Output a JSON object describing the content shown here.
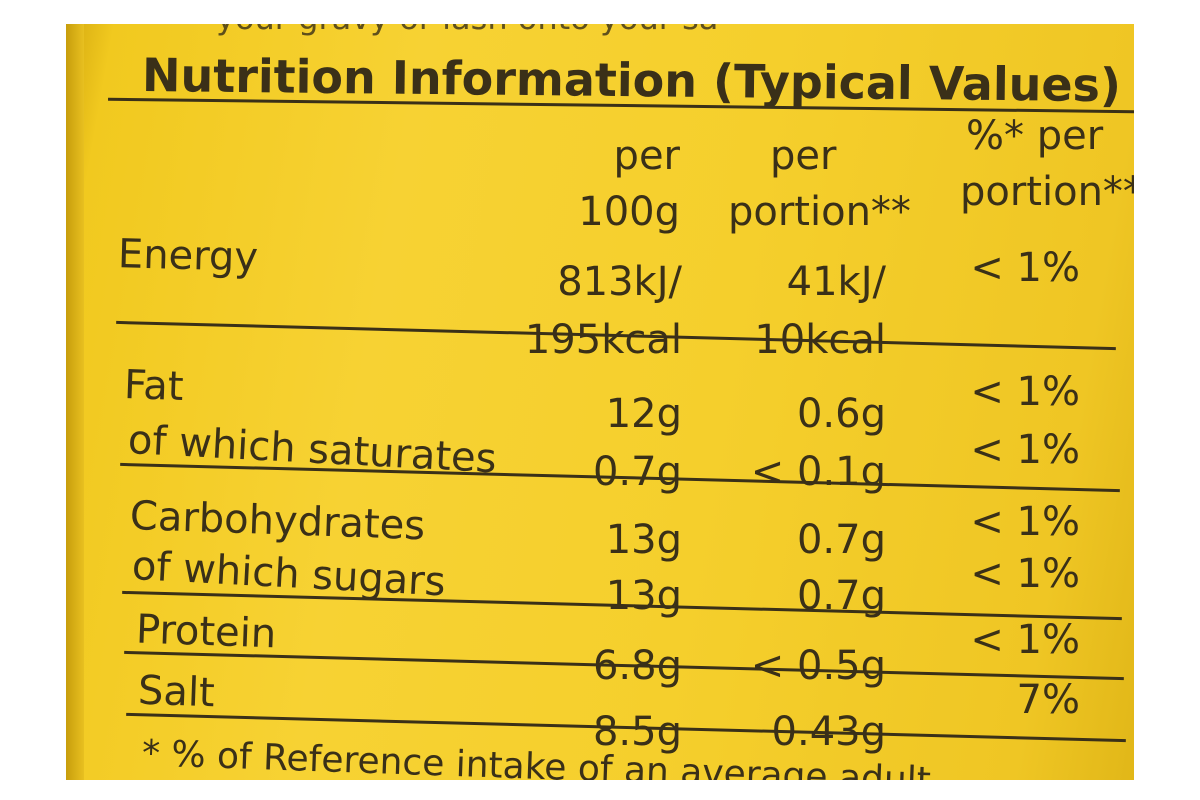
{
  "label": {
    "top_text": "your gravy or lash onto your sa",
    "title": "Nutrition Information (Typical Values)",
    "headers": {
      "per_100g_line1": "per",
      "per_100g_line2": "100g",
      "per_portion_line1": "per",
      "per_portion_line2": "portion**",
      "pct_line1": "%* per",
      "pct_line2": "portion**"
    },
    "rows": [
      {
        "name": "Energy",
        "per100_a": "813kJ/",
        "per100_b": "195kcal",
        "portion_a": "41kJ/",
        "portion_b": "10kcal",
        "pct": "< 1%"
      },
      {
        "name": "Fat",
        "per100": "12g",
        "portion": "0.6g",
        "pct": "< 1%"
      },
      {
        "name": "of which saturates",
        "per100": "0.7g",
        "portion": "< 0.1g",
        "pct": "< 1%"
      },
      {
        "name": "Carbohydrates",
        "per100": "13g",
        "portion": "0.7g",
        "pct": "< 1%"
      },
      {
        "name": "of which sugars",
        "per100": "13g",
        "portion": "0.7g",
        "pct": "< 1%"
      },
      {
        "name": "Protein",
        "per100": "6.8g",
        "portion": "< 0.5g",
        "pct": "< 1%"
      },
      {
        "name": "Salt",
        "per100": "8.5g",
        "portion": "0.43g",
        "pct": "7%"
      }
    ],
    "footnote": "*   % of Reference intake of an average adult"
  },
  "colors": {
    "label_yellow": "#f5cf2c",
    "ink": "#3a3018"
  }
}
